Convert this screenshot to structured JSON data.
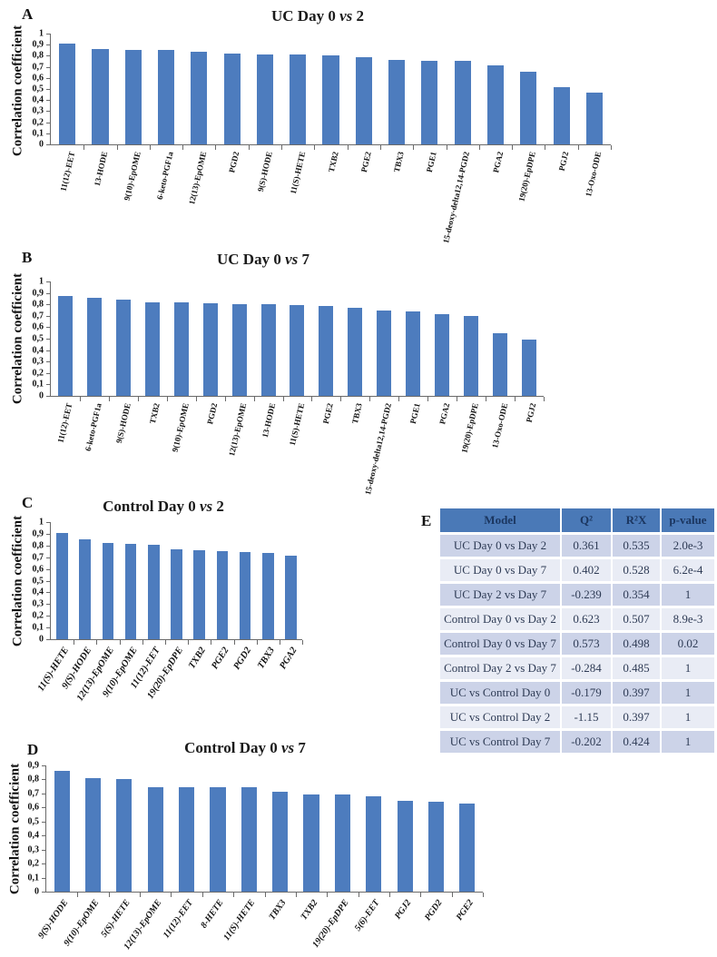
{
  "chart_data": [
    {
      "type": "bar",
      "panel": "A",
      "title": "UC Day 0 vs 2",
      "ylabel": "Correlation coefficient",
      "ylim": [
        0,
        1
      ],
      "grid": false,
      "bar_color": "#4d7cbe",
      "yticks": [
        "1",
        "0,9",
        "0,8",
        "0,7",
        "0,6",
        "0,5",
        "0,4",
        "0,3",
        "0,2",
        "0,1",
        "0"
      ],
      "categories": [
        "11(12)-EET",
        "13-HODE",
        "9(10)-EpOME",
        "6-keto-PGF1a",
        "12(13)-EpOME",
        "PGD2",
        "9(S)-HODE",
        "11(S)-HETE",
        "TXB2",
        "PGE2",
        "TBX3",
        "PGE1",
        "15-deoxy-delta12,14-PGD2",
        "PGA2",
        "19(20)-EpDPE",
        "PGJ2",
        "13-Oxo-ODE"
      ],
      "values": [
        0.91,
        0.86,
        0.855,
        0.85,
        0.84,
        0.82,
        0.81,
        0.81,
        0.805,
        0.79,
        0.76,
        0.755,
        0.755,
        0.715,
        0.655,
        0.52,
        0.47
      ]
    },
    {
      "type": "bar",
      "panel": "B",
      "title": "UC Day 0 vs 7",
      "ylabel": "Correlation coefficient",
      "ylim": [
        0,
        1
      ],
      "grid": false,
      "bar_color": "#4d7cbe",
      "yticks": [
        "1",
        "0,9",
        "0,8",
        "0,7",
        "0,6",
        "0,5",
        "0,4",
        "0,3",
        "0,2",
        "0,1",
        "0"
      ],
      "categories": [
        "11(12)-EET",
        "6-keto-PGF1a",
        "9(S)-HODE",
        "TXB2",
        "9(10)-EpOME",
        "PGD2",
        "12(13)-EpOME",
        "13-HODE",
        "11(S)-HETE",
        "PGE2",
        "TBX3",
        "15-deoxy-delta12,14-PGD2",
        "PGE1",
        "PGA2",
        "19(20)-EpDPE",
        "13-Oxo-ODE",
        "PGJ2"
      ],
      "values": [
        0.87,
        0.855,
        0.845,
        0.82,
        0.82,
        0.81,
        0.805,
        0.8,
        0.795,
        0.785,
        0.77,
        0.75,
        0.74,
        0.715,
        0.7,
        0.545,
        0.49
      ]
    },
    {
      "type": "bar",
      "panel": "C",
      "title": "Control Day 0 vs 2",
      "ylabel": "Correlation coefficient",
      "ylim": [
        0,
        1
      ],
      "grid": false,
      "bar_color": "#4d7cbe",
      "yticks": [
        "1",
        "0,9",
        "0,8",
        "0,7",
        "0,6",
        "0,5",
        "0,4",
        "0,3",
        "0,2",
        "0,1",
        "0"
      ],
      "categories": [
        "11(S)-HETE",
        "9(S)-HODE",
        "12(13)-EpOME",
        "9(10)-EpOME",
        "11(12)-EET",
        "19(20)-EpDPE",
        "TXB2",
        "PGE2",
        "PGD2",
        "TBX3",
        "PGA2"
      ],
      "values": [
        0.91,
        0.85,
        0.82,
        0.815,
        0.81,
        0.77,
        0.76,
        0.75,
        0.745,
        0.74,
        0.71
      ]
    },
    {
      "type": "bar",
      "panel": "D",
      "title": "Control Day 0 vs 7",
      "ylabel": "Correlation coefficient",
      "ylim": [
        0,
        0.9
      ],
      "grid": false,
      "bar_color": "#4d7cbe",
      "yticks": [
        "0,9",
        "0,8",
        "0,7",
        "0,6",
        "0,5",
        "0,4",
        "0,3",
        "0,2",
        "0,1",
        "0"
      ],
      "categories": [
        "9(S)-HODE",
        "9(10)-EpOME",
        "5(S)-HETE",
        "12(13)-EpOME",
        "11(12)-EET",
        "8-HETE",
        "11(S)-HETE",
        "TBX3",
        "TXB2",
        "19(20)-EpDPE",
        "5(6)-EET",
        "PGJ2",
        "PGD2",
        "PGE2"
      ],
      "values": [
        0.86,
        0.81,
        0.8,
        0.745,
        0.745,
        0.745,
        0.745,
        0.715,
        0.695,
        0.69,
        0.68,
        0.65,
        0.64,
        0.63
      ]
    },
    {
      "type": "table",
      "panel": "E",
      "columns": [
        "Model",
        "Q²",
        "R²X",
        "p-value"
      ],
      "rows": [
        [
          "UC Day 0 vs Day 2",
          "0.361",
          "0.535",
          "2.0e-3"
        ],
        [
          "UC Day 0 vs Day 7",
          "0.402",
          "0.528",
          "6.2e-4"
        ],
        [
          "UC Day 2 vs Day 7",
          "-0.239",
          "0.354",
          "1"
        ],
        [
          "Control Day 0 vs Day 2",
          "0.623",
          "0.507",
          "8.9e-3"
        ],
        [
          "Control Day 0 vs Day 7",
          "0.573",
          "0.498",
          "0.02"
        ],
        [
          "Control Day 2 vs Day 7",
          "-0.284",
          "0.485",
          "1"
        ],
        [
          "UC vs Control Day 0",
          "-0.179",
          "0.397",
          "1"
        ],
        [
          "UC vs Control Day 2",
          "-1.15",
          "0.397",
          "1"
        ],
        [
          "UC vs Control Day 7",
          "-0.202",
          "0.424",
          "1"
        ]
      ],
      "header_bg": "#4a79b7",
      "row_bg_odd": "#ccd3e8",
      "row_bg_even": "#e9ecf5"
    }
  ]
}
